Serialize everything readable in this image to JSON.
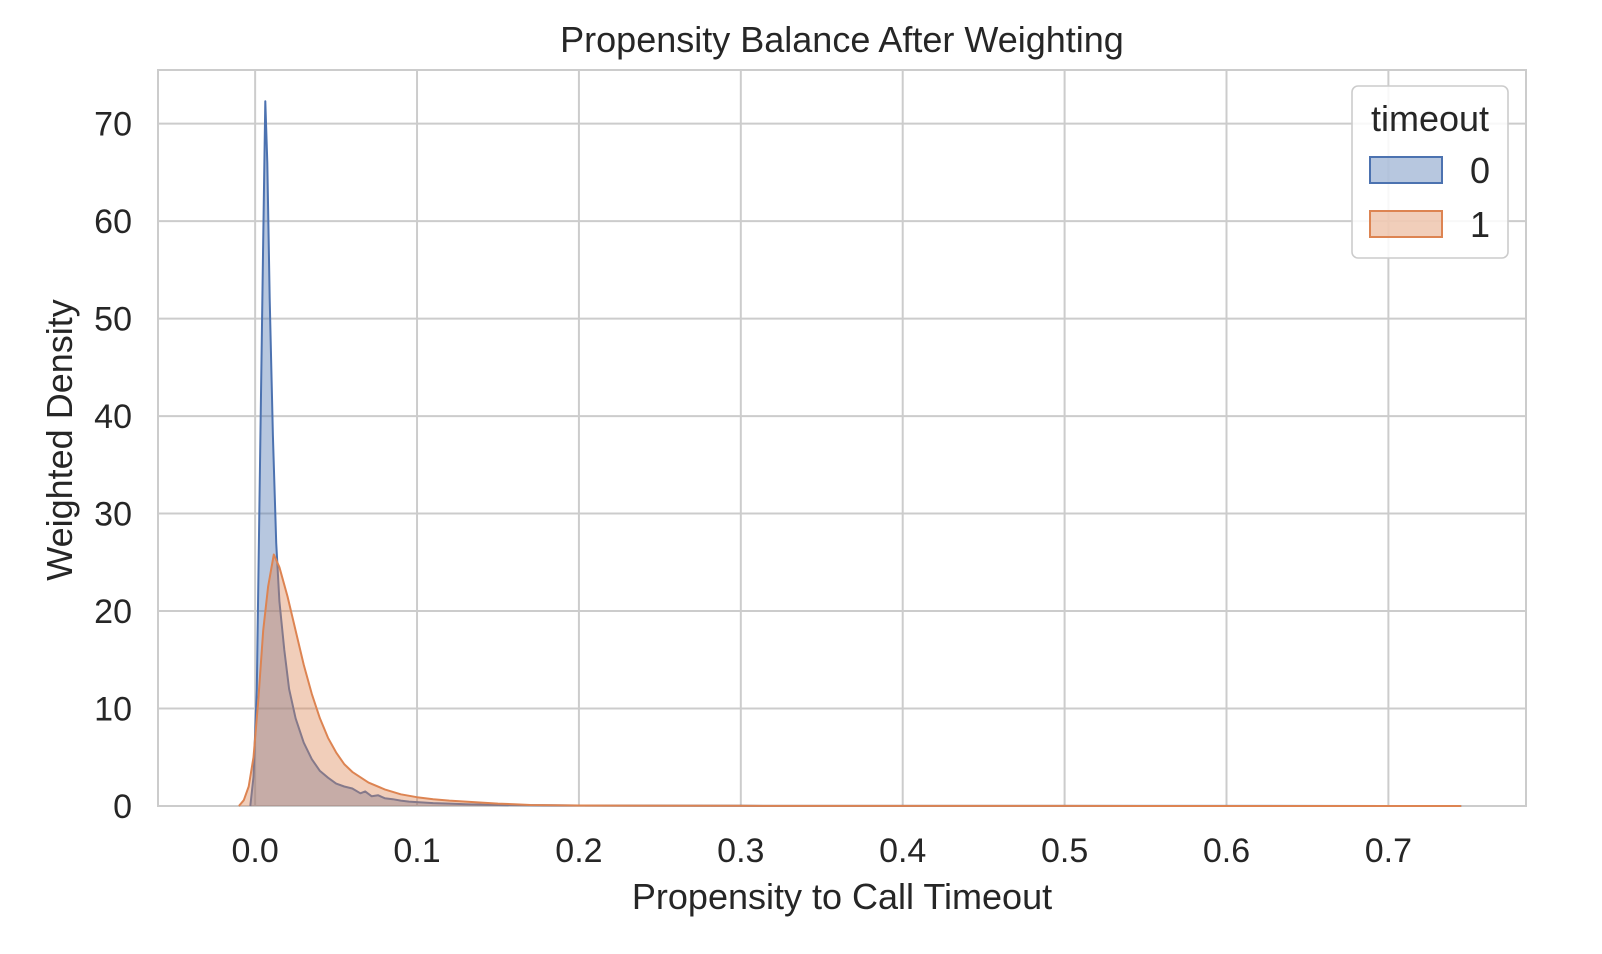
{
  "chart_data": {
    "type": "area",
    "title": "Propensity Balance After Weighting",
    "xlabel": "Propensity to Call Timeout",
    "ylabel": "Weighted Density",
    "xlim": [
      -0.06,
      0.785
    ],
    "ylim": [
      0,
      75.5
    ],
    "x_ticks": [
      0.0,
      0.1,
      0.2,
      0.3,
      0.4,
      0.5,
      0.6,
      0.7
    ],
    "x_tick_labels": [
      "0.0",
      "0.1",
      "0.2",
      "0.3",
      "0.4",
      "0.5",
      "0.6",
      "0.7"
    ],
    "y_ticks": [
      0,
      10,
      20,
      30,
      40,
      50,
      60,
      70
    ],
    "y_tick_labels": [
      "0",
      "10",
      "20",
      "30",
      "40",
      "50",
      "60",
      "70"
    ],
    "grid": true,
    "legend": {
      "title": "timeout",
      "placement": "top-right",
      "entries": [
        "0",
        "1"
      ]
    },
    "series": [
      {
        "name": "0",
        "color": "#4c72b0",
        "fill": "#4c72b0",
        "points": [
          [
            -0.003,
            0
          ],
          [
            -0.001,
            3
          ],
          [
            0.001,
            12
          ],
          [
            0.003,
            35
          ],
          [
            0.005,
            58
          ],
          [
            0.0063,
            72.3
          ],
          [
            0.0075,
            66
          ],
          [
            0.009,
            52
          ],
          [
            0.011,
            38
          ],
          [
            0.013,
            27
          ],
          [
            0.015,
            21
          ],
          [
            0.018,
            16
          ],
          [
            0.021,
            12
          ],
          [
            0.025,
            9
          ],
          [
            0.03,
            6.5
          ],
          [
            0.035,
            4.8
          ],
          [
            0.04,
            3.6
          ],
          [
            0.045,
            2.9
          ],
          [
            0.05,
            2.3
          ],
          [
            0.055,
            2.0
          ],
          [
            0.06,
            1.8
          ],
          [
            0.065,
            1.3
          ],
          [
            0.068,
            1.5
          ],
          [
            0.072,
            1.0
          ],
          [
            0.076,
            1.1
          ],
          [
            0.08,
            0.8
          ],
          [
            0.085,
            0.7
          ],
          [
            0.09,
            0.55
          ],
          [
            0.095,
            0.45
          ],
          [
            0.1,
            0.4
          ],
          [
            0.11,
            0.3
          ],
          [
            0.12,
            0.25
          ],
          [
            0.13,
            0.18
          ],
          [
            0.15,
            0.1
          ],
          [
            0.2,
            0.05
          ],
          [
            0.3,
            0.02
          ],
          [
            0.4,
            0.01
          ],
          [
            0.5,
            0.01
          ],
          [
            0.6,
            0.01
          ],
          [
            0.7,
            0.0
          ],
          [
            0.745,
            0
          ]
        ]
      },
      {
        "name": "1",
        "color": "#dd8452",
        "fill": "#dd8452",
        "points": [
          [
            -0.01,
            0
          ],
          [
            -0.007,
            0.6
          ],
          [
            -0.004,
            2.0
          ],
          [
            -0.001,
            5.0
          ],
          [
            0.002,
            11
          ],
          [
            0.005,
            18
          ],
          [
            0.008,
            22.5
          ],
          [
            0.0115,
            25.8
          ],
          [
            0.015,
            24.5
          ],
          [
            0.02,
            21.5
          ],
          [
            0.025,
            18
          ],
          [
            0.03,
            14.5
          ],
          [
            0.035,
            11.5
          ],
          [
            0.04,
            9.0
          ],
          [
            0.045,
            7.0
          ],
          [
            0.05,
            5.5
          ],
          [
            0.055,
            4.3
          ],
          [
            0.06,
            3.5
          ],
          [
            0.07,
            2.4
          ],
          [
            0.08,
            1.7
          ],
          [
            0.09,
            1.2
          ],
          [
            0.1,
            0.9
          ],
          [
            0.11,
            0.7
          ],
          [
            0.12,
            0.55
          ],
          [
            0.13,
            0.45
          ],
          [
            0.14,
            0.35
          ],
          [
            0.15,
            0.25
          ],
          [
            0.16,
            0.18
          ],
          [
            0.17,
            0.1
          ],
          [
            0.2,
            0.05
          ],
          [
            0.3,
            0.02
          ],
          [
            0.4,
            0.01
          ],
          [
            0.5,
            0.01
          ],
          [
            0.6,
            0.0
          ],
          [
            0.745,
            0
          ]
        ]
      }
    ]
  }
}
